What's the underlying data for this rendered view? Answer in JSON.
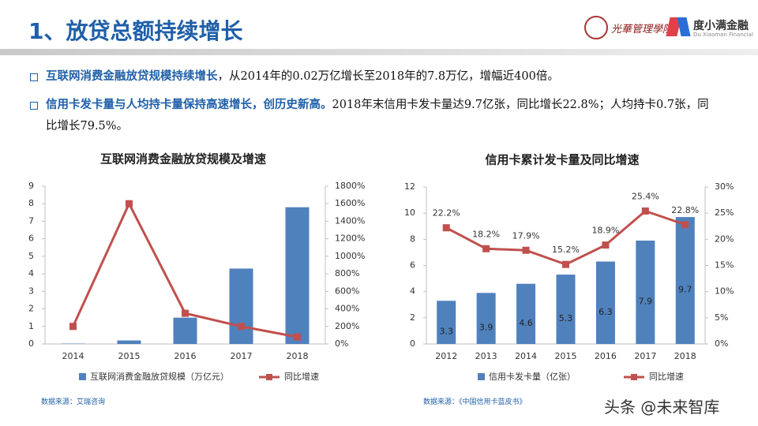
{
  "header": {
    "title": "1、放贷总额持续增长",
    "logo_school": "光華管理學院",
    "logo_company": "度小满金融",
    "logo_company_en": "Du Xiaoman Financial"
  },
  "bullets": [
    {
      "highlight": "互联网消费金融放贷规模持续增长",
      "text": "，从2014年的0.02万亿增长至2018年的7.8万亿，增幅近400倍。"
    },
    {
      "highlight": "信用卡发卡量与人均持卡量保持高速增长，创历史新高。",
      "text": "2018年末信用卡发卡量达9.7亿张，同比增长22.8%；人均持卡0.7张，同比增长79.5%。"
    }
  ],
  "sources": [
    "数据来源：艾瑞咨询",
    "数据来源：《中国信用卡蓝皮书》"
  ],
  "watermark": "头条 @未来智库",
  "chart_data": [
    {
      "type": "combo",
      "title": "互联网消费金融放贷规模及增速",
      "categories": [
        "2014",
        "2015",
        "2016",
        "2017",
        "2018"
      ],
      "series": [
        {
          "name": "互联网消费金融放贷规模（万亿元）",
          "type": "bar",
          "color": "#4f81bd",
          "values": [
            0.02,
            0.2,
            1.5,
            4.3,
            7.8
          ]
        },
        {
          "name": "同比增速",
          "type": "line",
          "axis": "y2",
          "color": "#c0504d",
          "values": [
            200,
            1600,
            350,
            200,
            80
          ]
        }
      ],
      "ylim": [
        0,
        9
      ],
      "yticks": [
        0,
        1,
        2,
        3,
        4,
        5,
        6,
        7,
        8,
        9
      ],
      "y2lim": [
        0,
        1800
      ],
      "y2ticks": [
        {
          "value": 0,
          "label": "0%"
        },
        {
          "value": 200,
          "label": "200%"
        },
        {
          "value": 400,
          "label": "400%"
        },
        {
          "value": 600,
          "label": "600%"
        },
        {
          "value": 800,
          "label": "800%"
        },
        {
          "value": 1000,
          "label": "1000%"
        },
        {
          "value": 1200,
          "label": "1200%"
        },
        {
          "value": 1400,
          "label": "1400%"
        },
        {
          "value": 1600,
          "label": "1600%"
        },
        {
          "value": 1800,
          "label": "1800%"
        }
      ],
      "legend": "bottom"
    },
    {
      "type": "combo",
      "title": "信用卡累计发卡量及同比增速",
      "categories": [
        "2012",
        "2013",
        "2014",
        "2015",
        "2016",
        "2017",
        "2018"
      ],
      "series": [
        {
          "name": "信用卡发卡量（亿张）",
          "type": "bar",
          "color": "#4f81bd",
          "values": [
            3.3,
            3.9,
            4.6,
            5.3,
            6.3,
            7.9,
            9.7
          ],
          "data_labels": true
        },
        {
          "name": "同比增速",
          "type": "line",
          "axis": "y2",
          "color": "#c0504d",
          "values": [
            22.2,
            18.2,
            17.9,
            15.2,
            18.9,
            25.4,
            22.8
          ],
          "value_labels": [
            "22.2%",
            "18.2%",
            "17.9%",
            "15.2%",
            "18.9%",
            "25.4%",
            "22.8%"
          ]
        }
      ],
      "ylim": [
        0,
        12
      ],
      "yticks": [
        0,
        2,
        4,
        6,
        8,
        10,
        12
      ],
      "y2lim": [
        0,
        30
      ],
      "y2ticks": [
        {
          "value": 0,
          "label": "0%"
        },
        {
          "value": 5,
          "label": "5%"
        },
        {
          "value": 10,
          "label": "10%"
        },
        {
          "value": 15,
          "label": "15%"
        },
        {
          "value": 20,
          "label": "20%"
        },
        {
          "value": 25,
          "label": "25%"
        },
        {
          "value": 30,
          "label": "30%"
        }
      ],
      "legend": "bottom"
    }
  ]
}
